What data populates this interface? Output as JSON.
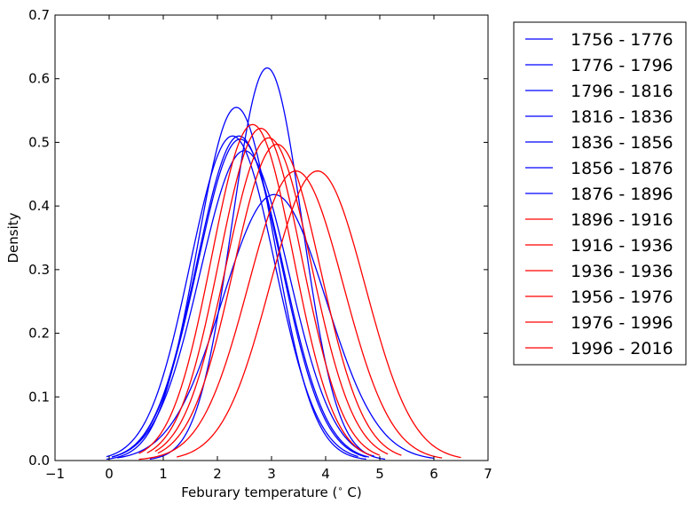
{
  "chart_data": {
    "type": "line",
    "title": "",
    "xlabel": "Feburary temperature (",
    "xlabel_degree": "∘",
    "xlabel_unit": " C)",
    "ylabel": "Density",
    "xlim": [
      -1,
      7
    ],
    "ylim": [
      0,
      0.7
    ],
    "xticks": [
      "−1",
      "0",
      "1",
      "2",
      "3",
      "4",
      "5",
      "6",
      "7"
    ],
    "yticks": [
      "0.0",
      "0.1",
      "0.2",
      "0.3",
      "0.4",
      "0.5",
      "0.6",
      "0.7"
    ],
    "grid": false,
    "legend_position": "outside-right",
    "series": [
      {
        "name": "1756 - 1776",
        "color": "#0000ff",
        "mean": 2.35,
        "peak": 0.555,
        "x_range": [
          -0.05,
          4.75
        ]
      },
      {
        "name": "1776 - 1796",
        "color": "#0000ff",
        "mean": 2.92,
        "peak": 0.617,
        "x_range": [
          0.75,
          5.1
        ]
      },
      {
        "name": "1796 - 1816",
        "color": "#0000ff",
        "mean": 2.28,
        "peak": 0.51,
        "x_range": [
          -0.05,
          4.6
        ]
      },
      {
        "name": "1816 - 1836",
        "color": "#0000ff",
        "mean": 2.4,
        "peak": 0.51,
        "x_range": [
          0.05,
          4.75
        ]
      },
      {
        "name": "1836 - 1856",
        "color": "#0000ff",
        "mean": 2.5,
        "peak": 0.487,
        "x_range": [
          0.1,
          4.9
        ]
      },
      {
        "name": "1856 - 1876",
        "color": "#0000ff",
        "mean": 2.42,
        "peak": 0.505,
        "x_range": [
          0.05,
          4.8
        ]
      },
      {
        "name": "1876 - 1896",
        "color": "#0000ff",
        "mean": 3.05,
        "peak": 0.418,
        "x_range": [
          0.15,
          6.0
        ]
      },
      {
        "name": "1896 - 1916",
        "color": "#ff0000",
        "mean": 2.65,
        "peak": 0.528,
        "x_range": [
          0.55,
          4.85
        ]
      },
      {
        "name": "1916 - 1936",
        "color": "#ff0000",
        "mean": 2.8,
        "peak": 0.522,
        "x_range": [
          0.7,
          5.0
        ]
      },
      {
        "name": "1936 - 1936",
        "color": "#ff0000",
        "mean": 2.95,
        "peak": 0.507,
        "x_range": [
          0.85,
          5.15
        ]
      },
      {
        "name": "1956 - 1976",
        "color": "#ff0000",
        "mean": 3.1,
        "peak": 0.497,
        "x_range": [
          0.9,
          5.4
        ]
      },
      {
        "name": "1976 - 1996",
        "color": "#ff0000",
        "mean": 3.45,
        "peak": 0.455,
        "x_range": [
          0.55,
          6.15
        ]
      },
      {
        "name": "1996 - 2016",
        "color": "#ff0000",
        "mean": 3.85,
        "peak": 0.455,
        "x_range": [
          1.25,
          6.5
        ]
      }
    ]
  }
}
